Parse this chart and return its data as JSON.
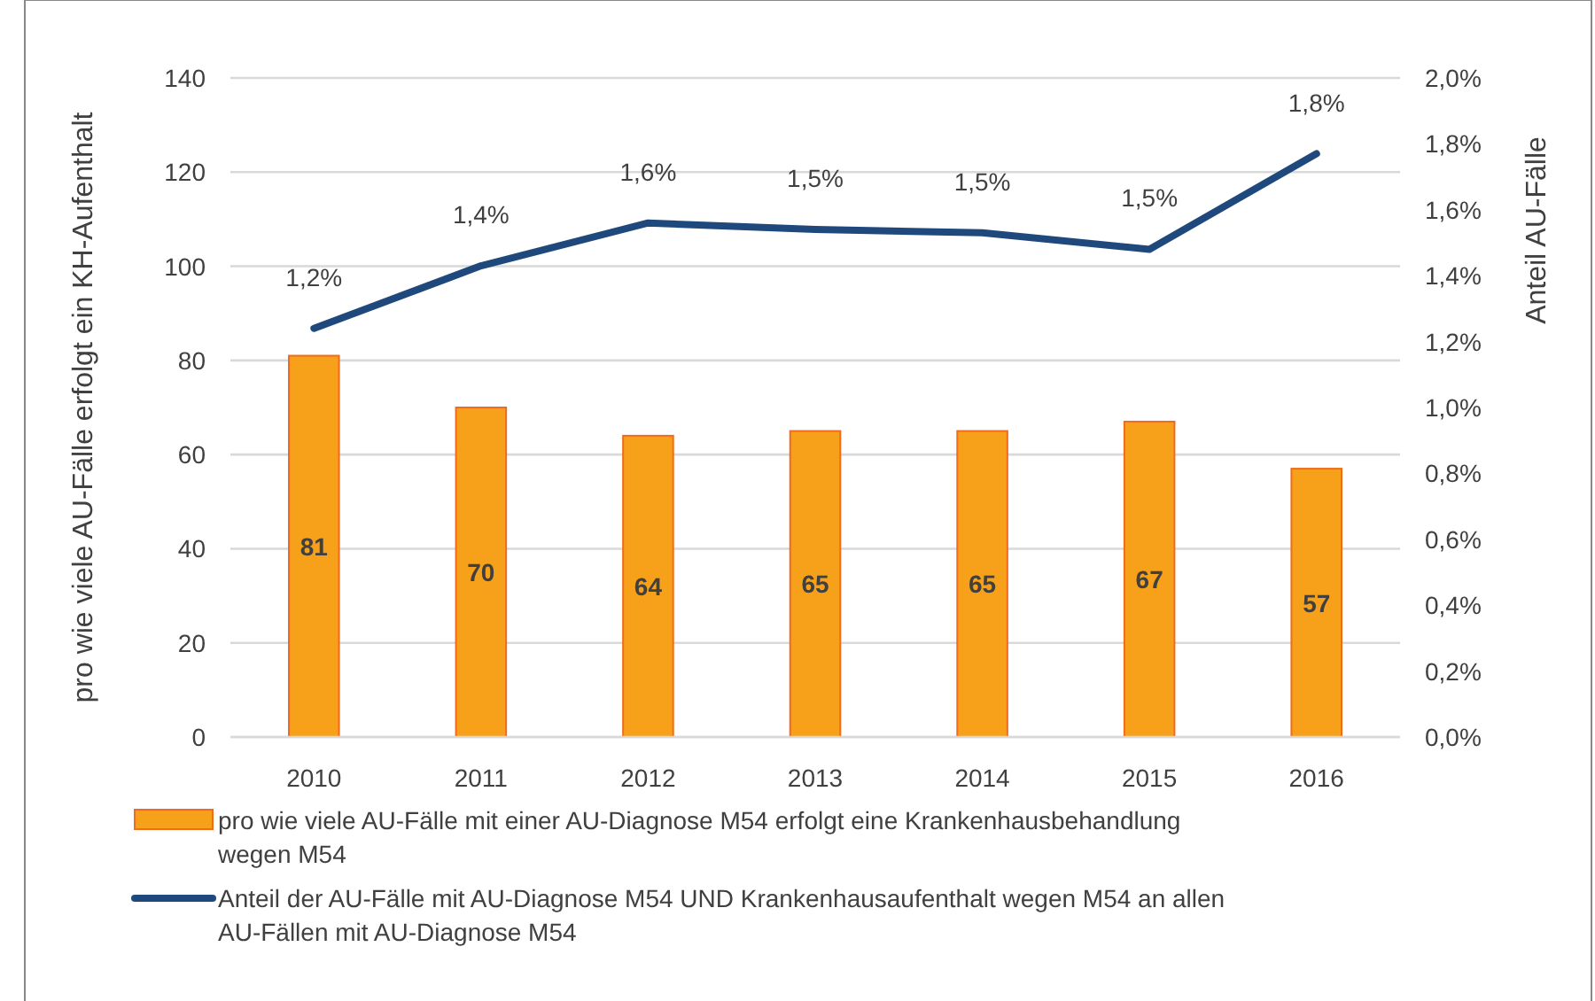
{
  "chart_data": {
    "type": "bar",
    "categories": [
      "2010",
      "2011",
      "2012",
      "2013",
      "2014",
      "2015",
      "2016"
    ],
    "ylabel": "pro wie viele AU-Fälle erfolgt ein KH-Aufenthalt",
    "y2label": "Anteil AU-Fälle",
    "series": [
      {
        "name": "pro wie viele AU-Fälle mit einer AU-Diagnose M54 erfolgt eine Krankenhausbehandlung wegen M54",
        "color": "#f7a11a",
        "values": [
          81,
          70,
          64,
          65,
          65,
          67,
          57
        ],
        "data_labels": true
      },
      {
        "name": "Anteil der AU-Fälle mit AU-Diagnose M54 UND Krankenhausaufenthalt wegen M54  an allen AU-Fällen mit AU-Diagnose M54",
        "type": "line",
        "axis": "y2",
        "color": "#1f497d",
        "values": [
          1.24,
          1.43,
          1.56,
          1.54,
          1.53,
          1.48,
          1.77
        ],
        "value_labels": [
          "1,2%",
          "1,4%",
          "1,6%",
          "1,5%",
          "1,5%",
          "1,5%",
          "1,8%"
        ]
      }
    ],
    "ylim": [
      0,
      140
    ],
    "yticks": [
      0,
      20,
      40,
      60,
      80,
      100,
      120,
      140
    ],
    "y2lim": [
      0,
      2
    ],
    "y2ticks": [
      {
        "value": 0,
        "label": "0,0%"
      },
      {
        "value": 0.2,
        "label": "0,2%"
      },
      {
        "value": 0.4,
        "label": "0,4%"
      },
      {
        "value": 0.6,
        "label": "0,6%"
      },
      {
        "value": 0.8,
        "label": "0,8%"
      },
      {
        "value": 1,
        "label": "1,0%"
      },
      {
        "value": 1.2,
        "label": "1,2%"
      },
      {
        "value": 1.4,
        "label": "1,4%"
      },
      {
        "value": 1.6,
        "label": "1,6%"
      },
      {
        "value": 1.8,
        "label": "1,8%"
      },
      {
        "value": 2,
        "label": "2,0%"
      }
    ],
    "grid": "y",
    "legend": "bottom"
  }
}
